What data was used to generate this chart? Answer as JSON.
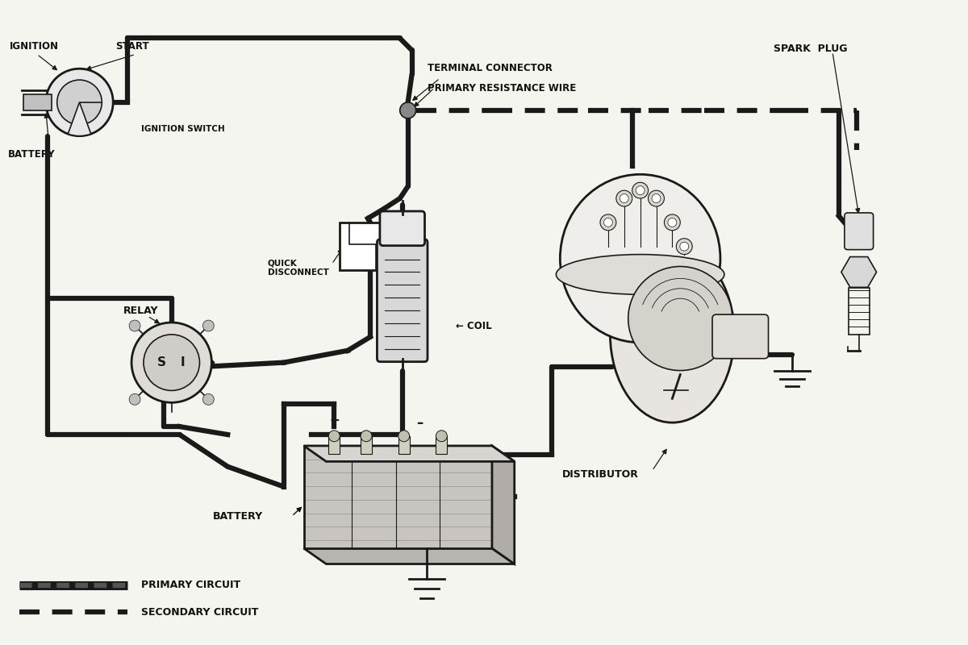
{
  "bg_color": "#f5f5f0",
  "line_color": "#1a1a1a",
  "text_color": "#111111",
  "labels": {
    "ignition": "IGNITION",
    "start": "START",
    "battery_top": "BATTERY",
    "ignition_switch": "IGNITION SWITCH",
    "terminal_connector": "TERMINAL CONNECTOR",
    "primary_resistance": "PRIMARY RESISTANCE WIRE",
    "quick_disconnect": "QUICK\nDISCONNECT",
    "relay": "RELAY",
    "coil": "COIL",
    "spark_plug": "SPARK  PLUG",
    "battery_bottom": "BATTERY",
    "distributor": "DISTRIBUTOR",
    "primary_circuit": "PRIMARY CIRCUIT",
    "secondary_circuit": "SECONDARY CIRCUIT"
  },
  "figsize": [
    12,
    8
  ],
  "dpi": 100
}
